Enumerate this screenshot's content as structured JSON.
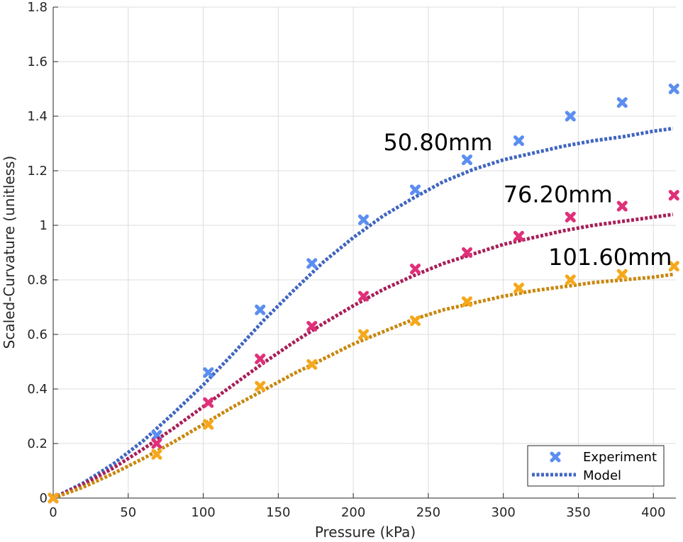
{
  "chart_data": {
    "type": "line",
    "xlabel": "Pressure (kPa)",
    "ylabel": "Scaled-Curvature (unitless)",
    "xlim": [
      0,
      415
    ],
    "ylim": [
      0,
      1.8
    ],
    "xticks": [
      "0",
      "50",
      "100",
      "150",
      "200",
      "250",
      "300",
      "350",
      "400"
    ],
    "yticks": [
      "0",
      "0.2",
      "0.4",
      "0.6",
      "0.8",
      "1",
      "1.2",
      "1.4",
      "1.6",
      "1.8"
    ],
    "grid": true,
    "legend": {
      "placement": "bottom-right",
      "entries": [
        "Experiment",
        "Model"
      ]
    },
    "experiment_x": [
      0,
      69,
      103.4,
      137.9,
      172.4,
      206.8,
      241.3,
      275.8,
      310.3,
      344.7,
      379.2,
      413.7
    ],
    "series": [
      {
        "label": "50.80mm",
        "color": "#5b8ef0",
        "model_color": "#4065c0",
        "experiment": [
          0.0,
          0.23,
          0.46,
          0.69,
          0.86,
          1.02,
          1.13,
          1.24,
          1.31,
          1.4,
          1.45,
          1.5
        ],
        "model_x": [
          0,
          20,
          40,
          60,
          80,
          100,
          120,
          140,
          160,
          180,
          200,
          220,
          240,
          260,
          280,
          300,
          320,
          340,
          360,
          380,
          400,
          413
        ],
        "model_y": [
          0,
          0.055,
          0.125,
          0.21,
          0.31,
          0.415,
          0.53,
          0.65,
          0.76,
          0.865,
          0.955,
          1.035,
          1.1,
          1.16,
          1.205,
          1.24,
          1.265,
          1.29,
          1.31,
          1.325,
          1.345,
          1.355
        ]
      },
      {
        "label": "76.20mm",
        "color": "#e0307a",
        "model_color": "#a81e57",
        "experiment": [
          0.0,
          0.2,
          0.35,
          0.51,
          0.63,
          0.74,
          0.84,
          0.9,
          0.96,
          1.03,
          1.07,
          1.11
        ],
        "model_x": [
          0,
          20,
          40,
          60,
          80,
          100,
          120,
          140,
          160,
          180,
          200,
          220,
          240,
          260,
          280,
          300,
          320,
          340,
          360,
          380,
          400,
          413
        ],
        "model_y": [
          0,
          0.05,
          0.11,
          0.18,
          0.255,
          0.335,
          0.415,
          0.495,
          0.57,
          0.64,
          0.705,
          0.765,
          0.815,
          0.86,
          0.895,
          0.93,
          0.955,
          0.98,
          1.0,
          1.015,
          1.03,
          1.04
        ]
      },
      {
        "label": "101.60mm",
        "color": "#f5a81c",
        "model_color": "#c8870e",
        "experiment": [
          0.0,
          0.16,
          0.27,
          0.41,
          0.49,
          0.6,
          0.65,
          0.72,
          0.77,
          0.8,
          0.82,
          0.85
        ],
        "model_x": [
          0,
          20,
          40,
          60,
          80,
          100,
          120,
          140,
          160,
          180,
          200,
          220,
          240,
          260,
          280,
          300,
          320,
          340,
          360,
          380,
          400,
          413
        ],
        "model_y": [
          0,
          0.04,
          0.09,
          0.145,
          0.205,
          0.27,
          0.335,
          0.395,
          0.455,
          0.51,
          0.565,
          0.61,
          0.655,
          0.69,
          0.715,
          0.74,
          0.76,
          0.775,
          0.79,
          0.8,
          0.81,
          0.82
        ]
      }
    ],
    "annotations": [
      {
        "text": "50.80mm",
        "x": 220,
        "y": 1.275
      },
      {
        "text": "76.20mm",
        "x": 300,
        "y": 1.085
      },
      {
        "text": "101.60mm",
        "x": 330,
        "y": 0.855
      }
    ]
  }
}
